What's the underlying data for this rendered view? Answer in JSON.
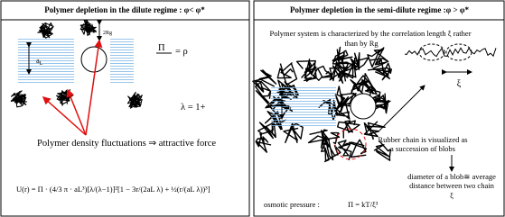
{
  "left": {
    "title": "Polymer depletion in the dilute regime : φ< φ*",
    "rg_label": "2Rg",
    "gap_symbol": "a",
    "gap_sub": "L",
    "pressure_lhs": "Π",
    "pressure_rhs": "= ρ",
    "lambda": "λ = 1+",
    "fluctuations": "Polymer density fluctuations ⇒ attractive force",
    "potential": "U(r) = Π · (4/3 π · aL³)[λ/(λ−1)]²[1 − 3r/(2aL λ) + ½(r/(aL λ))³]"
  },
  "right": {
    "title": "Polymer depletion in the semi-dilute regime :φ > φ*",
    "correlation_line1": "Polymer system is characterized by the correlation length ξ rather",
    "correlation_line2": "than by Rg",
    "gap_symbol": "a",
    "gap_sub": "L",
    "xi": "ξ",
    "rubber_line1": "Rubber chain is visualized as",
    "rubber_line2": "a succession of blobs",
    "blob_line1": "diameter of a blob≅ average",
    "blob_line2": "distance between two chain",
    "blob_xi": "ξ",
    "osmotic_label": "osmotic pressure :",
    "osmotic_formula": "Π = kT/ξ³"
  }
}
